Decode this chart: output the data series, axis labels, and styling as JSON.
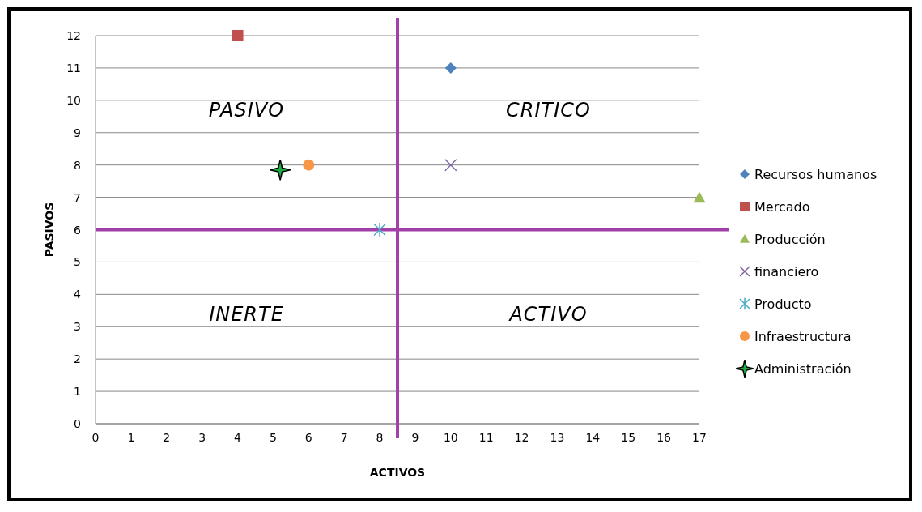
{
  "chart_data": {
    "type": "scatter",
    "xlabel": "ACTIVOS",
    "ylabel": "PASIVOS",
    "xlim": [
      0,
      17
    ],
    "ylim": [
      0,
      12
    ],
    "xticks": [
      0,
      1,
      2,
      3,
      4,
      5,
      6,
      7,
      8,
      9,
      10,
      11,
      12,
      13,
      14,
      15,
      16,
      17
    ],
    "yticks": [
      0,
      1,
      2,
      3,
      4,
      5,
      6,
      7,
      8,
      9,
      10,
      11,
      12
    ],
    "grid": "y",
    "legend": "right",
    "series": [
      {
        "name": "Recursos humanos",
        "color": "#4f81bd",
        "marker": "diamond",
        "x": [
          10
        ],
        "values": [
          11
        ]
      },
      {
        "name": "Mercado",
        "color": "#c0504d",
        "marker": "square",
        "x": [
          4
        ],
        "values": [
          12
        ]
      },
      {
        "name": "Producción",
        "color": "#9bbb59",
        "marker": "triangle",
        "x": [
          17
        ],
        "values": [
          7
        ]
      },
      {
        "name": "financiero",
        "color": "#8064a2",
        "marker": "cross",
        "x": [
          10
        ],
        "values": [
          8
        ]
      },
      {
        "name": "Producto",
        "color": "#4bacc6",
        "x": [
          8
        ],
        "values": [
          6
        ]
      },
      {
        "name": "Infraestructura",
        "color": "#f79646",
        "marker": "circle",
        "x": [
          6
        ],
        "values": [
          8
        ]
      },
      {
        "name": "Administración",
        "color": "#22aa44",
        "marker": "star",
        "x": [
          5.2
        ],
        "values": [
          7.85
        ]
      }
    ],
    "ref_lines": [
      {
        "axis": "x",
        "value": 8.5,
        "color": "#a040a8"
      },
      {
        "axis": "y",
        "value": 6,
        "color": "#a040a8"
      }
    ],
    "annotations": [
      "PASIVO",
      "CRITICO",
      "INERTE",
      "ACTIVO"
    ]
  }
}
